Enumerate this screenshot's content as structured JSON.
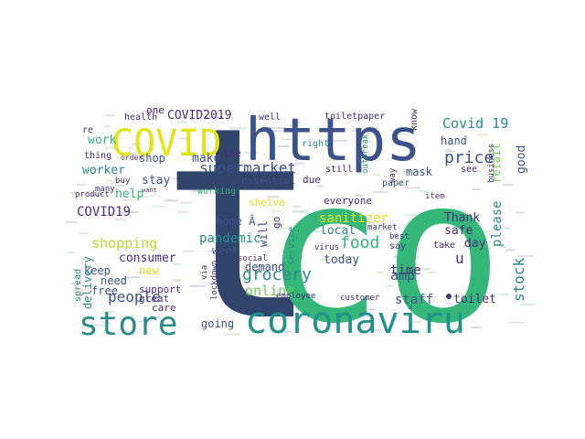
{
  "palette": {
    "navy": "#31446b",
    "teal": "#2b8a8a",
    "green": "#35b779",
    "lime": "#b5dd2b",
    "yellow": "#e2e418",
    "purple": "#472d7b",
    "blue": "#3b528b",
    "mid": "#21918c",
    "light": "#6ece58"
  },
  "words": {
    "t": "t",
    "co": "co",
    "https": "https",
    "coronaviru": "coronaviru",
    "store": "store",
    "covid": "COVID",
    "supermarket": "supermarket",
    "price": "price",
    "grocery": "grocery",
    "food": "food",
    "covid19_a": "COVID19",
    "covid19_b": "Covid 19",
    "covid2019": "COVID2019",
    "shopping": "shopping",
    "people": "people",
    "consumer": "consumer",
    "pandemic": "pandemic",
    "online": "online",
    "sanitizer": "sanitizer",
    "stock": "stock",
    "please": "please",
    "retail": "retail",
    "good": "good",
    "time": "time",
    "amp": "amp",
    "staff": "staff",
    "toilet": "toilet",
    "today": "today",
    "local": "local",
    "mask": "mask",
    "hand": "hand",
    "thank": "Thank",
    "safe": "safe",
    "day": "day",
    "u": "u",
    "worker": "worker",
    "work": "work",
    "make": "make",
    "stay": "stay",
    "help": "help",
    "shop": "shop",
    "keep": "keep",
    "need": "need",
    "free": "free",
    "new": "new",
    "delivery": "delivery",
    "spread": "spread",
    "support": "support",
    "great": "great",
    "care": "care",
    "going": "going",
    "demand": "demand",
    "week": "week",
    "home": "home Â",
    "go": "go",
    "will": "will",
    "working": "working",
    "essential": "essential",
    "shelve": "shelve",
    "due": "due",
    "right": "right",
    "still": "still",
    "everyone": "everyone",
    "paper": "paper",
    "toiletpaper": "toiletpaper",
    "know": "know",
    "see": "see",
    "business": "business",
    "employee": "employee",
    "customer": "customer",
    "market": "market",
    "virus": "virus",
    "service": "service",
    "social": "social",
    "lockdown": "lockdown",
    "via": "via",
    "item": "item",
    "best": "best",
    "say": "say",
    "take": "take",
    "health": "health",
    "one": "one",
    "well": "well",
    "thing": "thing",
    "buy": "buy",
    "want": "want",
    "product": "product",
    "many": "many",
    "order": "order",
    "re": "re",
    "use": "use",
    "outbreak": "outbreak",
    "way": "way"
  }
}
